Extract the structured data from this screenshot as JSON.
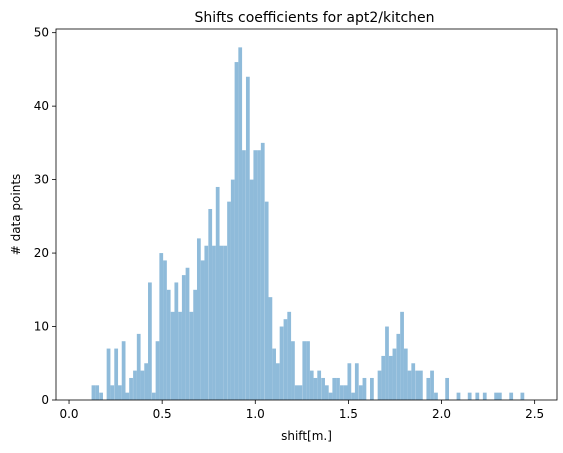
{
  "chart_data": {
    "type": "bar",
    "title": "Shifts coefficients for apt2/kitchen",
    "xlabel": "shift[m.]",
    "ylabel": "# data points",
    "xlim": [
      -0.07,
      2.62
    ],
    "ylim": [
      0,
      50.5
    ],
    "xticks": [
      0.0,
      0.5,
      1.0,
      1.5,
      2.0,
      2.5
    ],
    "xtick_labels": [
      "0.0",
      "0.5",
      "1.0",
      "1.5",
      "2.0",
      "2.5"
    ],
    "yticks": [
      0,
      10,
      20,
      30,
      40,
      50
    ],
    "ytick_labels": [
      "0",
      "10",
      "20",
      "30",
      "40",
      "50"
    ],
    "grid": false,
    "bar_color": "#8fbbda",
    "bin_width": 0.0202,
    "x": [
      0.121,
      0.141,
      0.162,
      0.182,
      0.202,
      0.222,
      0.243,
      0.263,
      0.283,
      0.303,
      0.323,
      0.344,
      0.364,
      0.384,
      0.404,
      0.424,
      0.445,
      0.465,
      0.485,
      0.505,
      0.525,
      0.546,
      0.566,
      0.586,
      0.606,
      0.626,
      0.647,
      0.667,
      0.687,
      0.707,
      0.727,
      0.748,
      0.768,
      0.788,
      0.808,
      0.828,
      0.849,
      0.869,
      0.889,
      0.909,
      0.929,
      0.95,
      0.97,
      0.99,
      1.01,
      1.03,
      1.051,
      1.071,
      1.091,
      1.111,
      1.131,
      1.152,
      1.172,
      1.192,
      1.212,
      1.232,
      1.253,
      1.273,
      1.293,
      1.313,
      1.333,
      1.354,
      1.374,
      1.394,
      1.414,
      1.434,
      1.455,
      1.475,
      1.495,
      1.515,
      1.535,
      1.556,
      1.576,
      1.596,
      1.616,
      1.636,
      1.657,
      1.677,
      1.697,
      1.717,
      1.737,
      1.758,
      1.778,
      1.798,
      1.818,
      1.838,
      1.859,
      1.879,
      1.899,
      1.919,
      1.939,
      1.96,
      1.98,
      2.0,
      2.02,
      2.04,
      2.061,
      2.081,
      2.101,
      2.121,
      2.141,
      2.162,
      2.182,
      2.202,
      2.222,
      2.242,
      2.263,
      2.283,
      2.303,
      2.323,
      2.343,
      2.364,
      2.384,
      2.404,
      2.424,
      2.444,
      2.465,
      2.485,
      2.505,
      2.525
    ],
    "values": [
      2,
      2,
      1,
      0,
      7,
      2,
      7,
      2,
      8,
      1,
      3,
      4,
      9,
      4,
      5,
      16,
      1,
      8,
      20,
      19,
      15,
      12,
      16,
      12,
      17,
      18,
      12,
      15,
      22,
      19,
      21,
      26,
      21,
      29,
      21,
      21,
      27,
      30,
      46,
      48,
      34,
      44,
      30,
      34,
      34,
      35,
      27,
      14,
      7,
      5,
      10,
      11,
      12,
      8,
      2,
      2,
      8,
      8,
      4,
      3,
      4,
      3,
      2,
      1,
      3,
      3,
      2,
      2,
      5,
      1,
      5,
      2,
      3,
      0,
      3,
      0,
      4,
      6,
      10,
      6,
      7,
      9,
      12,
      7,
      4,
      5,
      4,
      4,
      0,
      3,
      4,
      1,
      0,
      0,
      3,
      0,
      0,
      1,
      0,
      0,
      1,
      0,
      1,
      0,
      1,
      0,
      0,
      1,
      1,
      0,
      0,
      1,
      0,
      0,
      1,
      0,
      0,
      0,
      0,
      0
    ]
  }
}
